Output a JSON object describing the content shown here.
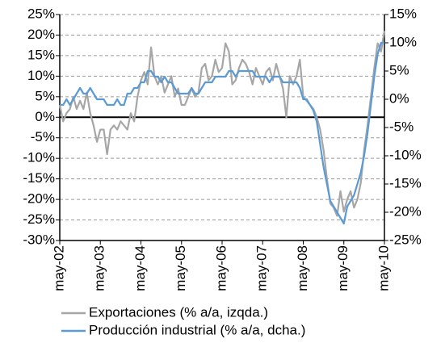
{
  "chart_data": {
    "type": "line",
    "categories": [
      "may-02",
      null,
      null,
      null,
      null,
      null,
      null,
      null,
      null,
      null,
      null,
      null,
      "may-03",
      null,
      null,
      null,
      null,
      null,
      null,
      null,
      null,
      null,
      null,
      null,
      "may-04",
      null,
      null,
      null,
      null,
      null,
      null,
      null,
      null,
      null,
      null,
      null,
      "may-05",
      null,
      null,
      null,
      null,
      null,
      null,
      null,
      null,
      null,
      null,
      null,
      "may-06",
      null,
      null,
      null,
      null,
      null,
      null,
      null,
      null,
      null,
      null,
      null,
      "may-07",
      null,
      null,
      null,
      null,
      null,
      null,
      null,
      null,
      null,
      null,
      null,
      "may-08",
      null,
      null,
      null,
      null,
      null,
      null,
      null,
      null,
      null,
      null,
      null,
      "may-09",
      null,
      null,
      null,
      null,
      null,
      null,
      null,
      null,
      null,
      null,
      null,
      "may-10"
    ],
    "series": [
      {
        "name": "Exportaciones (% a/a, izqda.)",
        "color": "#a6a6a6",
        "axis": "y",
        "values": [
          3,
          -1,
          1,
          2,
          5,
          2,
          4,
          2,
          6,
          1,
          -2,
          -6,
          -3,
          -3,
          -9,
          -3,
          -2,
          -3,
          -1,
          -2,
          -3,
          1,
          -1,
          5,
          9,
          11,
          8,
          17,
          10,
          8,
          10,
          6,
          8,
          10,
          5,
          7,
          3,
          3,
          5,
          7,
          5,
          6,
          12,
          13,
          9,
          10,
          14,
          11,
          12,
          18,
          16,
          8,
          9,
          12,
          14,
          13,
          11,
          8,
          12,
          10,
          8,
          11,
          12,
          9,
          13,
          10,
          7,
          0,
          10,
          8,
          10,
          14,
          5,
          4,
          3,
          2,
          0,
          -3,
          -8,
          -15,
          -21,
          -22,
          -24,
          -18,
          -23,
          -20,
          -18,
          -22,
          -20,
          -16,
          -8,
          -2,
          5,
          12,
          18,
          16,
          21
        ]
      },
      {
        "name": "Producción industrial (% a/a, dcha.)",
        "color": "#5b9bd5",
        "axis": "y2",
        "values": [
          -1,
          -1,
          0,
          -1,
          0,
          1,
          2,
          1,
          1,
          2,
          1,
          0,
          0,
          0,
          -1,
          -1,
          -1,
          0,
          -1,
          -1,
          1,
          1,
          2,
          2,
          3,
          3,
          5,
          5,
          4,
          4,
          3,
          4,
          3,
          3,
          2,
          1,
          1,
          1,
          1,
          2,
          1,
          1,
          2,
          3,
          3,
          3,
          4,
          4,
          4,
          4,
          5,
          5,
          4,
          5,
          5,
          5,
          5,
          5,
          4,
          4,
          4,
          4,
          3,
          4,
          4,
          4,
          3,
          3,
          3,
          3,
          3,
          2,
          0,
          0,
          -1,
          -2,
          -4,
          -8,
          -12,
          -15,
          -18,
          -19,
          -20,
          -21,
          -22,
          -19,
          -18,
          -17,
          -15,
          -13,
          -10,
          -6,
          -1,
          4,
          8,
          10,
          10
        ]
      }
    ],
    "ylim": [
      -30,
      25
    ],
    "yticks": [
      {
        "value": -30,
        "label": "-30%"
      },
      {
        "value": -25,
        "label": "-25%"
      },
      {
        "value": -20,
        "label": "-20%"
      },
      {
        "value": -15,
        "label": "-15%"
      },
      {
        "value": -10,
        "label": "-10%"
      },
      {
        "value": -5,
        "label": "-5%"
      },
      {
        "value": 0,
        "label": "0%"
      },
      {
        "value": 5,
        "label": "5%"
      },
      {
        "value": 10,
        "label": "10%"
      },
      {
        "value": 15,
        "label": "15%"
      },
      {
        "value": 20,
        "label": "20%"
      },
      {
        "value": 25,
        "label": "25%"
      }
    ],
    "y2lim": [
      -25,
      15
    ],
    "y2ticks": [
      {
        "value": -25,
        "label": "-25%"
      },
      {
        "value": -20,
        "label": "-20%"
      },
      {
        "value": -15,
        "label": "-15%"
      },
      {
        "value": -10,
        "label": "-10%"
      },
      {
        "value": -5,
        "label": "-5%"
      },
      {
        "value": 0,
        "label": "0%"
      },
      {
        "value": 5,
        "label": "5%"
      },
      {
        "value": 10,
        "label": "10%"
      },
      {
        "value": 15,
        "label": "15%"
      }
    ],
    "grid": true
  }
}
